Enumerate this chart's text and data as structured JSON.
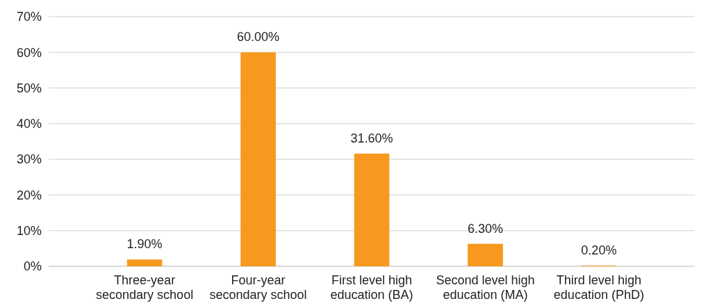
{
  "chart_data": {
    "type": "bar",
    "categories": [
      "Three-year secondary school",
      "Four-year secondary school",
      "First level high education (BA)",
      "Second level high education (MA)",
      "Third level high education (PhD)"
    ],
    "values": [
      1.9,
      60,
      31.6,
      6.3,
      0.2
    ],
    "value_labels": [
      "1.90%",
      "60.00%",
      "31.60%",
      "6.30%",
      "0.20%"
    ],
    "color": "#f7991f",
    "ylim": [
      0,
      70
    ],
    "yticks": [
      {
        "value": 0,
        "label": "0%"
      },
      {
        "value": 10,
        "label": "10%"
      },
      {
        "value": 20,
        "label": "20%"
      },
      {
        "value": 30,
        "label": "30%"
      },
      {
        "value": 40,
        "label": "40%"
      },
      {
        "value": 50,
        "label": "50%"
      },
      {
        "value": 60,
        "label": "60%"
      },
      {
        "value": 70,
        "label": "70%"
      }
    ],
    "grid": "y"
  }
}
